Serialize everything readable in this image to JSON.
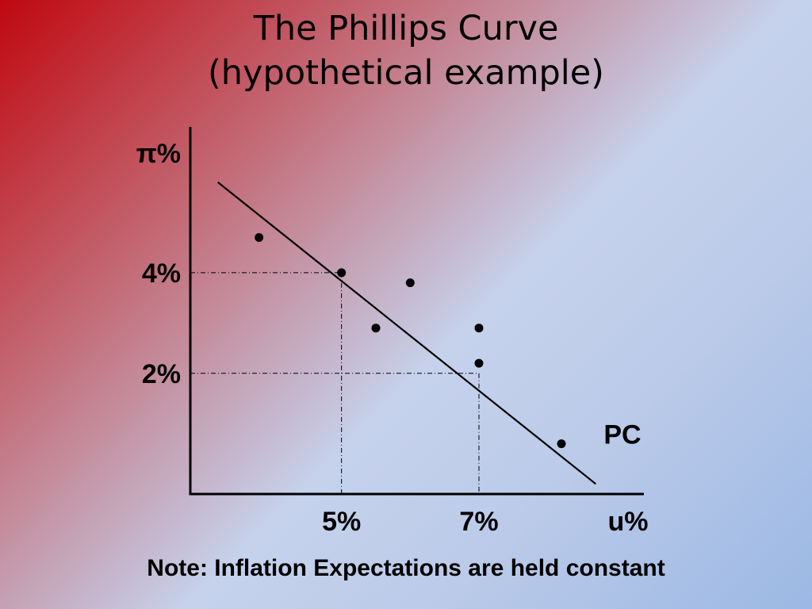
{
  "slide": {
    "title_line1": "The Phillips Curve",
    "title_line2": "(hypothetical example)",
    "note": "Note: Inflation Expectations are held constant"
  },
  "chart_data": {
    "type": "scatter",
    "title": "The Phillips Curve (hypothetical example)",
    "xlabel": "u%",
    "ylabel": "π%",
    "x_ticks": [
      {
        "value": 5,
        "label": "5%"
      },
      {
        "value": 7,
        "label": "7%"
      }
    ],
    "y_ticks": [
      {
        "value": 4,
        "label": "4%"
      },
      {
        "value": 2,
        "label": "2%"
      }
    ],
    "xlim": [
      2.8,
      9.4
    ],
    "ylim": [
      -0.4,
      6.9
    ],
    "grid": false,
    "series": [
      {
        "name": "PC",
        "type": "line",
        "points": [
          [
            3.2,
            5.8
          ],
          [
            8.7,
            -0.2
          ]
        ]
      },
      {
        "type": "scatter",
        "points": [
          [
            3.8,
            4.7
          ],
          [
            5.0,
            4.0
          ],
          [
            6.0,
            3.8
          ],
          [
            5.5,
            2.9
          ],
          [
            7.0,
            2.9
          ],
          [
            7.0,
            2.2
          ],
          [
            8.2,
            0.6
          ]
        ]
      }
    ],
    "reference_lines": [
      {
        "from": [
          2.8,
          4
        ],
        "to": [
          5,
          4
        ],
        "style": "dash-dot"
      },
      {
        "from": [
          5,
          4
        ],
        "to": [
          5,
          -0.4
        ],
        "style": "dash-dot"
      },
      {
        "from": [
          2.8,
          2
        ],
        "to": [
          7,
          2
        ],
        "style": "dash-dot"
      },
      {
        "from": [
          7,
          2
        ],
        "to": [
          7,
          -0.4
        ],
        "style": "dash-dot"
      }
    ],
    "annotations": [
      {
        "text": "PC",
        "at": [
          8.7,
          0.1
        ]
      }
    ]
  }
}
